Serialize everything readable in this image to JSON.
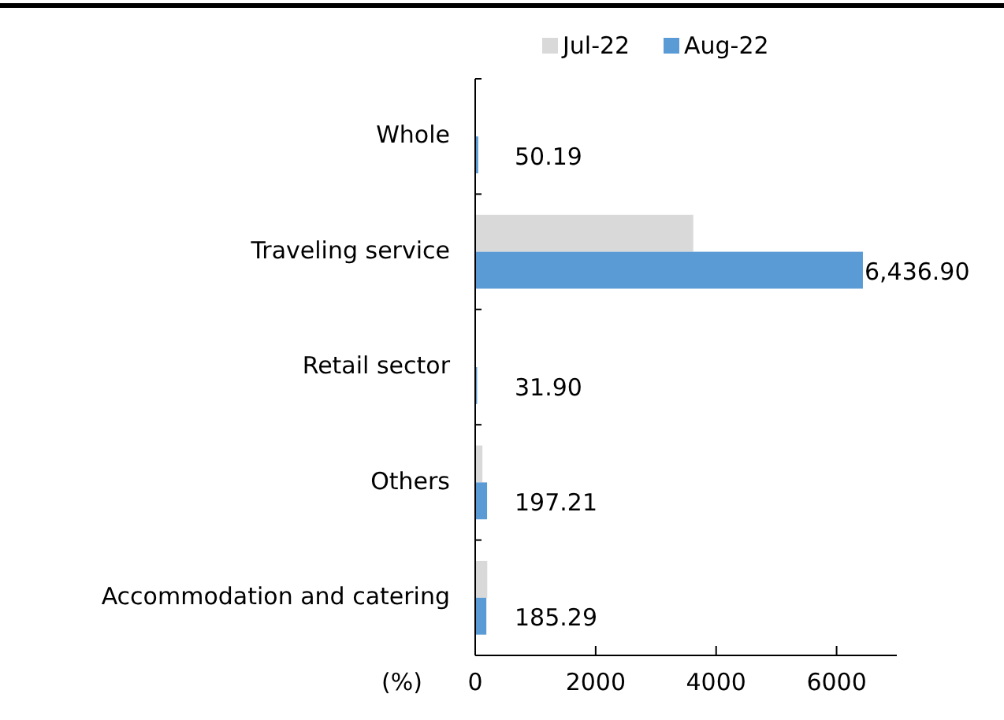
{
  "chart_data": {
    "type": "bar",
    "orientation": "horizontal",
    "categories": [
      "Whole",
      "Traveling service",
      "Retail sector",
      "Others",
      "Accommodation and catering"
    ],
    "series": [
      {
        "name": "Jul-22",
        "color": "#d9d9d9",
        "values": [
          null,
          3620,
          null,
          120,
          200
        ]
      },
      {
        "name": "Aug-22",
        "color": "#5b9bd5",
        "values": [
          50.19,
          6436.9,
          31.9,
          197.21,
          185.29
        ],
        "value_labels": [
          "50.19",
          "6,436.90",
          "31.90",
          "197.21",
          "185.29"
        ]
      }
    ],
    "xlabel": "(%)",
    "xlim": [
      0,
      7000
    ],
    "xticks": [
      0,
      2000,
      4000,
      6000
    ],
    "grid": false,
    "legend": "top"
  }
}
